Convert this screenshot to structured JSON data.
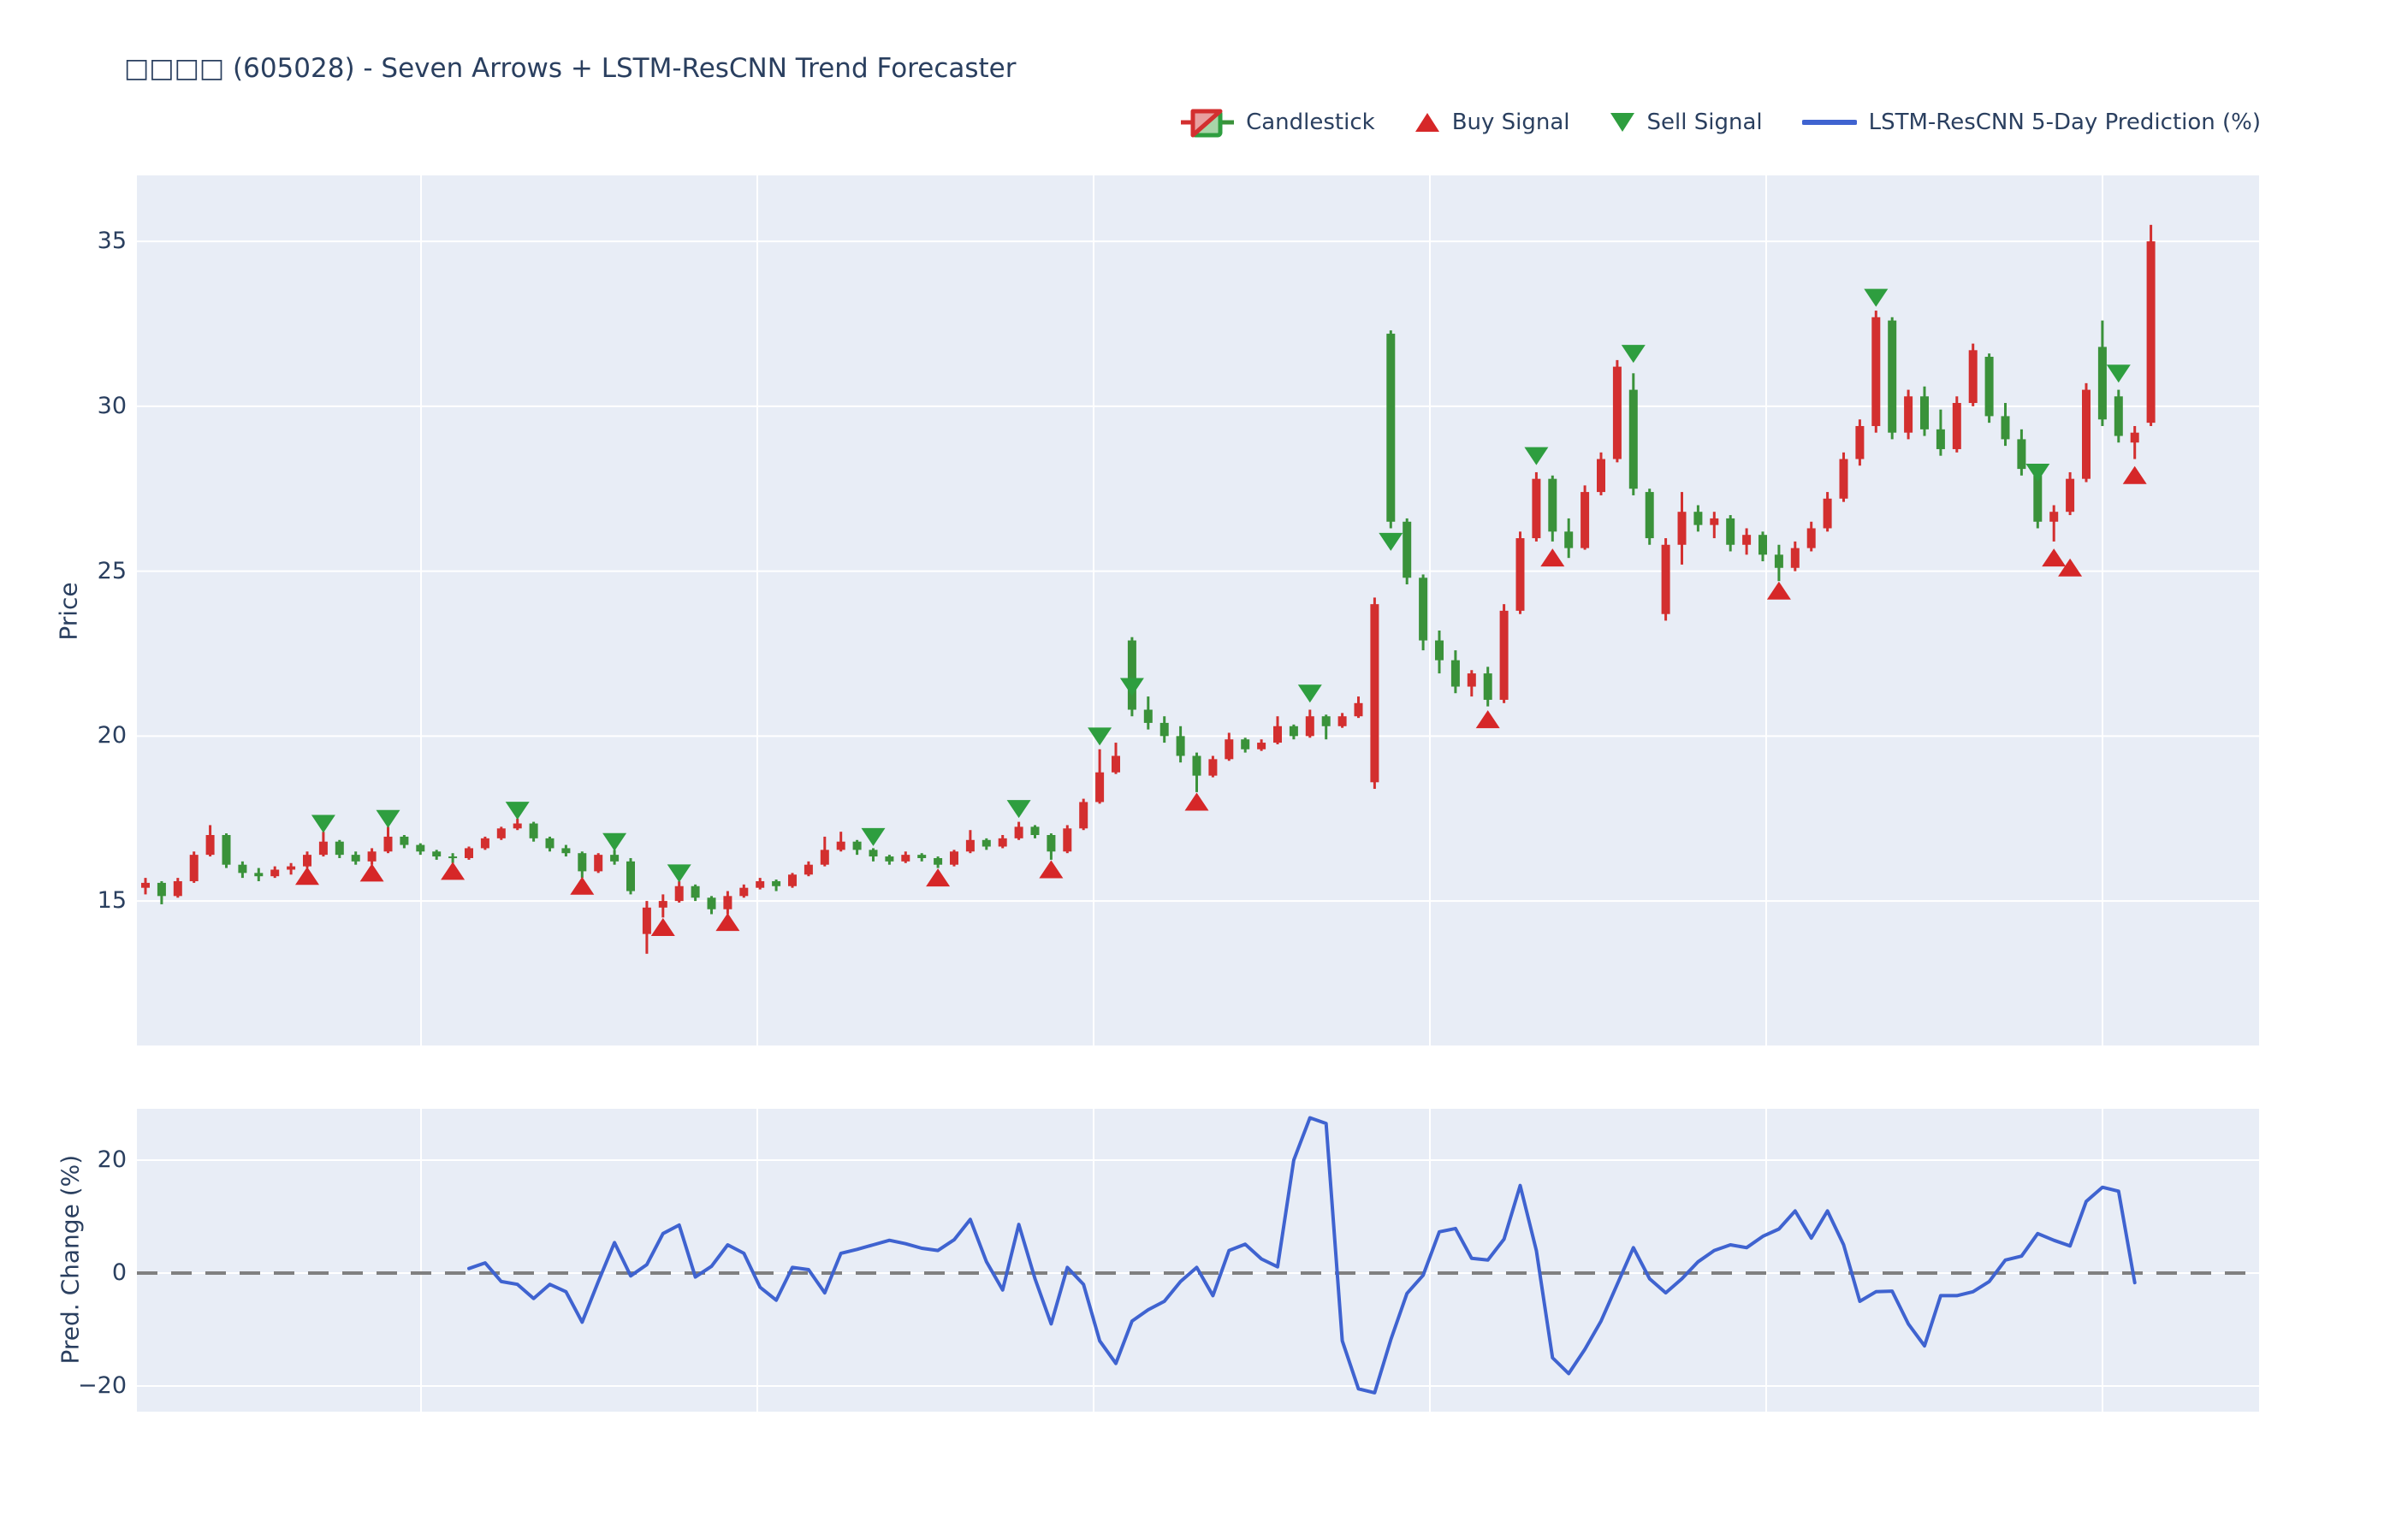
{
  "title": "□□□□ (605028) - Seven Arrows + LSTM-ResCNN Trend Forecaster",
  "legend": {
    "items": [
      {
        "id": "candlestick",
        "label": "Candlestick"
      },
      {
        "id": "buy",
        "label": "Buy Signal"
      },
      {
        "id": "sell",
        "label": "Sell Signal"
      },
      {
        "id": "prediction",
        "label": "LSTM-ResCNN 5-Day Prediction (%)"
      }
    ]
  },
  "colors": {
    "up": "#d32f2f",
    "down": "#3a923a",
    "buy_marker": "#d62728",
    "sell_marker": "#2e9e3f",
    "prediction_line": "#3f63d0",
    "zero_line": "#808080",
    "plot_bg": "#e8edf6",
    "grid": "#ffffff",
    "text": "#2a3f5f"
  },
  "chart_data": [
    {
      "type": "candlestick",
      "panel": "price",
      "ylabel": "Price",
      "yticks": [
        15,
        20,
        25,
        30,
        35
      ],
      "ylim": [
        10.6,
        37.0
      ],
      "grid": true,
      "legend_position": "top-right",
      "candles": [
        [
          15.4,
          15.7,
          15.2,
          15.55
        ],
        [
          15.55,
          15.6,
          14.9,
          15.15
        ],
        [
          15.15,
          15.7,
          15.1,
          15.6
        ],
        [
          15.6,
          16.5,
          15.55,
          16.4
        ],
        [
          16.4,
          17.3,
          16.35,
          17.0
        ],
        [
          17.0,
          17.05,
          16.0,
          16.1
        ],
        [
          16.1,
          16.2,
          15.7,
          15.85
        ],
        [
          15.85,
          16.0,
          15.6,
          15.75
        ],
        [
          15.75,
          16.05,
          15.7,
          15.95
        ],
        [
          15.95,
          16.15,
          15.8,
          16.05
        ],
        [
          16.05,
          16.5,
          16.0,
          16.4
        ],
        [
          16.4,
          17.1,
          16.35,
          16.8
        ],
        [
          16.8,
          16.85,
          16.3,
          16.4
        ],
        [
          16.4,
          16.5,
          16.1,
          16.2
        ],
        [
          16.2,
          16.6,
          16.1,
          16.5
        ],
        [
          16.5,
          17.25,
          16.45,
          16.95
        ],
        [
          16.95,
          17.0,
          16.6,
          16.7
        ],
        [
          16.7,
          16.75,
          16.4,
          16.5
        ],
        [
          16.5,
          16.55,
          16.25,
          16.35
        ],
        [
          16.35,
          16.45,
          16.15,
          16.3
        ],
        [
          16.3,
          16.65,
          16.25,
          16.6
        ],
        [
          16.6,
          16.95,
          16.55,
          16.9
        ],
        [
          16.9,
          17.25,
          16.85,
          17.2
        ],
        [
          17.2,
          17.5,
          17.15,
          17.35
        ],
        [
          17.35,
          17.4,
          16.8,
          16.9
        ],
        [
          16.9,
          16.95,
          16.5,
          16.6
        ],
        [
          16.6,
          16.7,
          16.35,
          16.45
        ],
        [
          16.45,
          16.5,
          15.7,
          15.9
        ],
        [
          15.9,
          16.45,
          15.85,
          16.4
        ],
        [
          16.4,
          16.55,
          16.1,
          16.2
        ],
        [
          16.2,
          16.3,
          15.2,
          15.3
        ],
        [
          14.0,
          15.0,
          13.4,
          14.8
        ],
        [
          14.8,
          15.2,
          14.5,
          15.0
        ],
        [
          15.0,
          15.6,
          14.95,
          15.45
        ],
        [
          15.45,
          15.5,
          15.0,
          15.1
        ],
        [
          15.1,
          15.15,
          14.6,
          14.75
        ],
        [
          14.75,
          15.3,
          14.6,
          15.15
        ],
        [
          15.15,
          15.5,
          15.1,
          15.4
        ],
        [
          15.4,
          15.7,
          15.35,
          15.6
        ],
        [
          15.6,
          15.65,
          15.3,
          15.45
        ],
        [
          15.45,
          15.85,
          15.4,
          15.8
        ],
        [
          15.8,
          16.2,
          15.75,
          16.1
        ],
        [
          16.1,
          16.95,
          16.05,
          16.55
        ],
        [
          16.55,
          17.1,
          16.5,
          16.8
        ],
        [
          16.8,
          16.85,
          16.4,
          16.55
        ],
        [
          16.55,
          16.6,
          16.2,
          16.35
        ],
        [
          16.35,
          16.4,
          16.1,
          16.2
        ],
        [
          16.2,
          16.5,
          16.15,
          16.4
        ],
        [
          16.4,
          16.45,
          16.2,
          16.3
        ],
        [
          16.3,
          16.35,
          16.0,
          16.1
        ],
        [
          16.1,
          16.55,
          16.05,
          16.5
        ],
        [
          16.5,
          17.15,
          16.45,
          16.85
        ],
        [
          16.85,
          16.9,
          16.55,
          16.65
        ],
        [
          16.65,
          17.0,
          16.6,
          16.9
        ],
        [
          16.9,
          17.4,
          16.85,
          17.25
        ],
        [
          17.25,
          17.3,
          16.9,
          17.0
        ],
        [
          17.0,
          17.05,
          16.25,
          16.5
        ],
        [
          16.5,
          17.3,
          16.45,
          17.2
        ],
        [
          17.2,
          18.1,
          17.15,
          18.0
        ],
        [
          18.0,
          19.6,
          17.95,
          18.9
        ],
        [
          18.9,
          19.8,
          18.85,
          19.4
        ],
        [
          22.9,
          23.0,
          20.6,
          20.8
        ],
        [
          20.8,
          21.2,
          20.2,
          20.4
        ],
        [
          20.4,
          20.6,
          19.8,
          20.0
        ],
        [
          20.0,
          20.3,
          19.2,
          19.4
        ],
        [
          19.4,
          19.5,
          18.3,
          18.8
        ],
        [
          18.8,
          19.4,
          18.75,
          19.3
        ],
        [
          19.3,
          20.1,
          19.25,
          19.9
        ],
        [
          19.9,
          19.95,
          19.5,
          19.6
        ],
        [
          19.6,
          19.9,
          19.55,
          19.8
        ],
        [
          19.8,
          20.6,
          19.75,
          20.3
        ],
        [
          20.3,
          20.35,
          19.9,
          20.0
        ],
        [
          20.0,
          20.8,
          19.95,
          20.6
        ],
        [
          20.6,
          20.65,
          19.9,
          20.3
        ],
        [
          20.3,
          20.7,
          20.25,
          20.6
        ],
        [
          20.6,
          21.2,
          20.55,
          21.0
        ],
        [
          18.6,
          24.2,
          18.4,
          24.0
        ],
        [
          32.2,
          32.3,
          26.3,
          26.5
        ],
        [
          26.5,
          26.6,
          24.6,
          24.8
        ],
        [
          24.8,
          24.9,
          22.6,
          22.9
        ],
        [
          22.9,
          23.2,
          21.9,
          22.3
        ],
        [
          22.3,
          22.6,
          21.3,
          21.5
        ],
        [
          21.5,
          22.0,
          21.2,
          21.9
        ],
        [
          21.9,
          22.1,
          20.9,
          21.1
        ],
        [
          21.1,
          24.0,
          21.0,
          23.8
        ],
        [
          23.8,
          26.2,
          23.7,
          26.0
        ],
        [
          26.0,
          28.0,
          25.9,
          27.8
        ],
        [
          27.8,
          27.9,
          25.9,
          26.2
        ],
        [
          26.2,
          26.6,
          25.4,
          25.7
        ],
        [
          25.7,
          27.6,
          25.65,
          27.4
        ],
        [
          27.4,
          28.6,
          27.3,
          28.4
        ],
        [
          28.4,
          31.4,
          28.3,
          31.2
        ],
        [
          30.5,
          31.0,
          27.3,
          27.5
        ],
        [
          27.4,
          27.5,
          25.8,
          26.0
        ],
        [
          23.7,
          26.0,
          23.5,
          25.8
        ],
        [
          25.8,
          27.4,
          25.2,
          26.8
        ],
        [
          26.8,
          27.0,
          26.2,
          26.4
        ],
        [
          26.4,
          26.8,
          26.0,
          26.6
        ],
        [
          26.6,
          26.7,
          25.6,
          25.8
        ],
        [
          25.8,
          26.3,
          25.5,
          26.1
        ],
        [
          26.1,
          26.2,
          25.3,
          25.5
        ],
        [
          25.5,
          25.8,
          24.7,
          25.1
        ],
        [
          25.1,
          25.9,
          25.0,
          25.7
        ],
        [
          25.7,
          26.5,
          25.6,
          26.3
        ],
        [
          26.3,
          27.4,
          26.2,
          27.2
        ],
        [
          27.2,
          28.6,
          27.1,
          28.4
        ],
        [
          28.4,
          29.6,
          28.2,
          29.4
        ],
        [
          29.4,
          32.9,
          29.2,
          32.7
        ],
        [
          32.6,
          32.7,
          29.0,
          29.2
        ],
        [
          29.2,
          30.5,
          29.0,
          30.3
        ],
        [
          30.3,
          30.6,
          29.1,
          29.3
        ],
        [
          29.3,
          29.9,
          28.5,
          28.7
        ],
        [
          28.7,
          30.3,
          28.6,
          30.1
        ],
        [
          30.1,
          31.9,
          30.0,
          31.7
        ],
        [
          31.5,
          31.6,
          29.5,
          29.7
        ],
        [
          29.7,
          30.1,
          28.8,
          29.0
        ],
        [
          29.0,
          29.3,
          27.9,
          28.1
        ],
        [
          27.9,
          28.1,
          26.3,
          26.5
        ],
        [
          26.5,
          27.0,
          25.9,
          26.8
        ],
        [
          26.8,
          28.0,
          26.7,
          27.8
        ],
        [
          27.8,
          30.7,
          27.7,
          30.5
        ],
        [
          31.8,
          32.6,
          29.4,
          29.6
        ],
        [
          30.3,
          30.5,
          28.9,
          29.1
        ],
        [
          28.9,
          29.4,
          28.4,
          29.2
        ],
        [
          29.5,
          35.5,
          29.4,
          35.0
        ]
      ],
      "buy_signals": [
        {
          "i": 10,
          "price": 15.75
        },
        {
          "i": 14,
          "price": 15.85
        },
        {
          "i": 19,
          "price": 15.9
        },
        {
          "i": 27,
          "price": 15.45
        },
        {
          "i": 32,
          "price": 14.2
        },
        {
          "i": 36,
          "price": 14.35
        },
        {
          "i": 49,
          "price": 15.7
        },
        {
          "i": 56,
          "price": 15.95
        },
        {
          "i": 65,
          "price": 18.0
        },
        {
          "i": 83,
          "price": 20.5
        },
        {
          "i": 87,
          "price": 25.4
        },
        {
          "i": 101,
          "price": 24.4
        },
        {
          "i": 118,
          "price": 25.4
        },
        {
          "i": 119,
          "price": 25.1
        },
        {
          "i": 123,
          "price": 27.9
        }
      ],
      "sell_signals": [
        {
          "i": 11,
          "price": 17.35
        },
        {
          "i": 15,
          "price": 17.5
        },
        {
          "i": 23,
          "price": 17.75
        },
        {
          "i": 29,
          "price": 16.8
        },
        {
          "i": 33,
          "price": 15.85
        },
        {
          "i": 45,
          "price": 16.95
        },
        {
          "i": 54,
          "price": 17.8
        },
        {
          "i": 59,
          "price": 20.0
        },
        {
          "i": 61,
          "price": 21.5
        },
        {
          "i": 72,
          "price": 21.3
        },
        {
          "i": 77,
          "price": 25.9
        },
        {
          "i": 86,
          "price": 28.5
        },
        {
          "i": 92,
          "price": 31.6
        },
        {
          "i": 107,
          "price": 33.3
        },
        {
          "i": 117,
          "price": 28.0
        },
        {
          "i": 122,
          "price": 31.0
        }
      ]
    },
    {
      "type": "line",
      "panel": "prediction",
      "ylabel": "Pred. Change (%)",
      "yticks": [
        -20,
        0,
        20
      ],
      "ylim": [
        -24.5,
        29.1
      ],
      "grid": true,
      "zero_line": 0,
      "series": [
        {
          "name": "LSTM-ResCNN 5-Day Prediction (%)",
          "start_index": 20,
          "values": [
            0.8,
            1.8,
            -1.5,
            -2.0,
            -4.5,
            -2.0,
            -3.3,
            -8.7,
            -1.5,
            5.4,
            -0.5,
            1.5,
            7.0,
            8.5,
            -0.7,
            1.2,
            5.0,
            3.5,
            -2.5,
            -4.8,
            1.0,
            0.6,
            -3.5,
            3.5,
            4.2,
            5.0,
            5.8,
            5.2,
            4.4,
            4.0,
            5.9,
            9.5,
            2.0,
            -3.0,
            8.6,
            -1.0,
            -9.0,
            1.0,
            -2.0,
            -12.0,
            -16.0,
            -8.5,
            -6.5,
            -5.0,
            -1.5,
            1.0,
            -4.0,
            4.0,
            5.1,
            2.5,
            1.1,
            20.0,
            27.5,
            26.5,
            -12.0,
            -20.5,
            -21.2,
            -11.8,
            -3.6,
            -0.4,
            7.3,
            7.9,
            2.6,
            2.3,
            6.0,
            15.5,
            4.0,
            -15.0,
            -17.8,
            -13.5,
            -8.5,
            -2.0,
            4.5,
            -1.0,
            -3.5,
            -1.0,
            2.0,
            4.0,
            5.0,
            4.5,
            6.5,
            7.8,
            11.0,
            6.2,
            11.0,
            5.0,
            -5.0,
            -3.3,
            -3.2,
            -9.0,
            -12.9,
            -4.0,
            -4.0,
            -3.3,
            -1.5,
            2.3,
            3.0,
            7.0,
            5.8,
            4.8,
            12.7,
            15.2,
            14.5,
            -1.7
          ]
        }
      ]
    }
  ]
}
